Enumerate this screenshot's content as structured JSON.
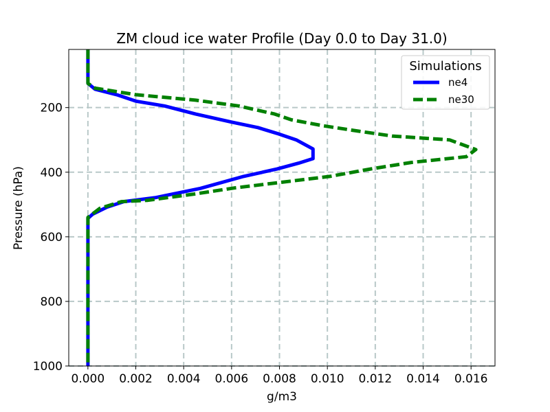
{
  "colors": {
    "ne4": "#0000ff",
    "ne30": "#008000",
    "grid": "#b8c8c8"
  },
  "chart_data": {
    "type": "line",
    "title": "ZM cloud ice water Profile (Day 0.0 to Day 31.0)",
    "xlabel": "g/m3",
    "ylabel": "Pressure (hPa)",
    "xlim": [
      -0.0008,
      0.017
    ],
    "ylim": [
      1000,
      20
    ],
    "y_inverted": true,
    "grid": true,
    "xticks": [
      0.0,
      0.002,
      0.004,
      0.006,
      0.008,
      0.01,
      0.012,
      0.014,
      0.016
    ],
    "xtick_labels": [
      "0.000",
      "0.002",
      "0.004",
      "0.006",
      "0.008",
      "0.010",
      "0.012",
      "0.014",
      "0.016"
    ],
    "yticks": [
      200,
      400,
      600,
      800,
      1000
    ],
    "ytick_labels": [
      "200",
      "400",
      "600",
      "800",
      "1000"
    ],
    "legend": {
      "title": "Simulations",
      "position": "upper right",
      "entries": [
        "ne4",
        "ne30"
      ]
    },
    "series": [
      {
        "name": "ne4",
        "color": "#0000ff",
        "style": "solid",
        "points": [
          [
            0.0,
            20
          ],
          [
            0.0,
            60
          ],
          [
            0.0,
            100
          ],
          [
            0.0,
            125
          ],
          [
            0.0003,
            143
          ],
          [
            0.0012,
            160
          ],
          [
            0.002,
            180
          ],
          [
            0.0032,
            195
          ],
          [
            0.0045,
            220
          ],
          [
            0.006,
            245
          ],
          [
            0.0071,
            262
          ],
          [
            0.0079,
            280
          ],
          [
            0.0087,
            300
          ],
          [
            0.0094,
            328
          ],
          [
            0.0094,
            358
          ],
          [
            0.0088,
            372
          ],
          [
            0.0079,
            390
          ],
          [
            0.0065,
            413
          ],
          [
            0.0047,
            450
          ],
          [
            0.0028,
            479
          ],
          [
            0.0015,
            491
          ],
          [
            0.0008,
            508
          ],
          [
            0.0002,
            530
          ],
          [
            0.0,
            543
          ],
          [
            0.0,
            600
          ],
          [
            0.0,
            800
          ],
          [
            0.0,
            1000
          ]
        ]
      },
      {
        "name": "ne30",
        "color": "#008000",
        "style": "dashed",
        "points": [
          [
            0.0,
            20
          ],
          [
            0.0,
            60
          ],
          [
            0.0,
            100
          ],
          [
            0.0,
            125
          ],
          [
            0.0003,
            140
          ],
          [
            0.002,
            160
          ],
          [
            0.0045,
            177
          ],
          [
            0.0063,
            195
          ],
          [
            0.0078,
            220
          ],
          [
            0.0085,
            238
          ],
          [
            0.0098,
            256
          ],
          [
            0.0113,
            273
          ],
          [
            0.0127,
            288
          ],
          [
            0.0151,
            300
          ],
          [
            0.0162,
            330
          ],
          [
            0.0158,
            352
          ],
          [
            0.0135,
            370
          ],
          [
            0.0118,
            390
          ],
          [
            0.0101,
            413
          ],
          [
            0.008,
            432
          ],
          [
            0.0061,
            449
          ],
          [
            0.0045,
            467
          ],
          [
            0.0025,
            487
          ],
          [
            0.0014,
            491
          ],
          [
            0.0005,
            512
          ],
          [
            0.0,
            540
          ],
          [
            0.0,
            600
          ],
          [
            0.0,
            800
          ],
          [
            0.0,
            1000
          ]
        ]
      }
    ]
  }
}
